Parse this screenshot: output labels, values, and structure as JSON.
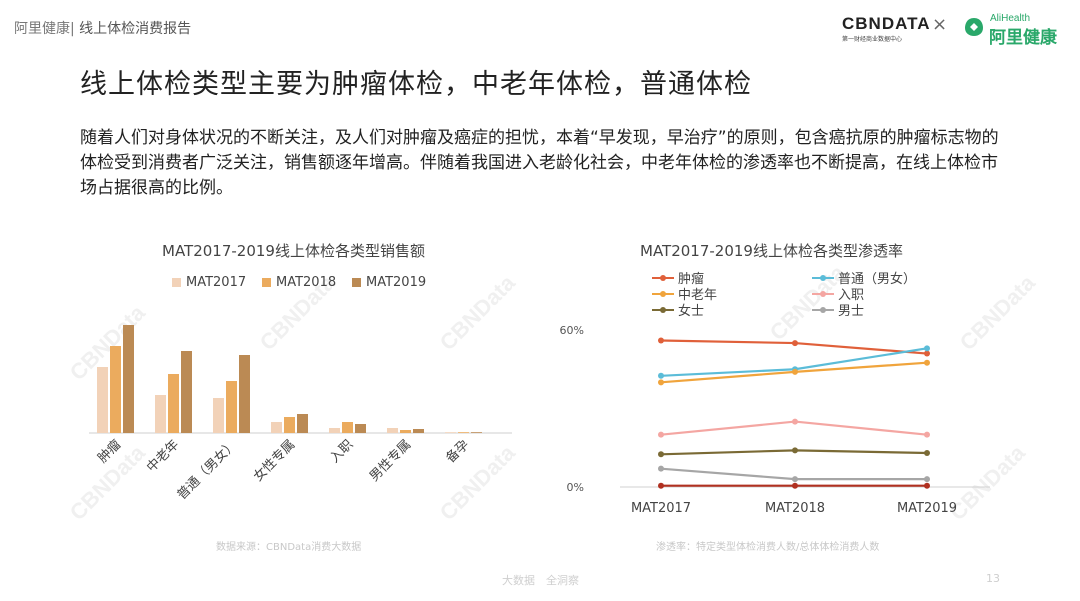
{
  "header": {
    "brand": "阿里健康|",
    "report": " 线上体检消费报告",
    "logo_cbn": "CBNDATA",
    "logo_cbn_sub": "第一财经商业数据中心",
    "logo_times": "×",
    "logo_ali_en": "AliHealth",
    "logo_ali_cn": "阿里健康"
  },
  "title": "线上体检类型主要为肿瘤体检，中老年体检，普通体检",
  "paragraph": "随着人们对身体状况的不断关注，及人们对肿瘤及癌症的担忧，本着“早发现，早治疗”的原则，包含癌抗原的肿瘤标志物的体检受到消费者广泛关注，销售额逐年增高。伴随着我国进入老龄化社会，中老年体检的渗透率也不断提高，在线上体检市场占据很高的比例。",
  "chart_data": [
    {
      "type": "bar",
      "title": "MAT2017-2019线上体检各类型销售额",
      "categories": [
        "肿瘤",
        "中老年",
        "普通（男女）",
        "女性专属",
        "入职",
        "男性专属",
        "备孕"
      ],
      "series": [
        {
          "name": "MAT2017",
          "values": [
            66,
            38,
            35,
            11,
            5,
            5,
            0.5
          ]
        },
        {
          "name": "MAT2018",
          "values": [
            87,
            59,
            52,
            16,
            11,
            3,
            0.5
          ]
        },
        {
          "name": "MAT2019",
          "values": [
            108,
            82,
            78,
            19,
            9,
            4,
            0.5
          ]
        }
      ],
      "legend_position": "top",
      "y_axis_shown": false,
      "colors": [
        "#f2d2b8",
        "#ebab5e",
        "#bb8a54"
      ]
    },
    {
      "type": "line",
      "title": "MAT2017-2019线上体检各类型渗透率",
      "categories": [
        "MAT2017",
        "MAT2018",
        "MAT2019"
      ],
      "ylim": [
        0,
        60
      ],
      "yticks": [
        "0%",
        "60%"
      ],
      "series": [
        {
          "name": "肿瘤",
          "values": [
            56,
            55,
            51
          ],
          "color": "#e0603a"
        },
        {
          "name": "普通（男女）",
          "values": [
            42.5,
            45,
            53
          ],
          "color": "#5bbcd8"
        },
        {
          "name": "中老年",
          "values": [
            40,
            44,
            47.5
          ],
          "color": "#f0a43c"
        },
        {
          "name": "入职",
          "values": [
            20,
            25,
            20
          ],
          "color": "#f4a6a2"
        },
        {
          "name": "女士",
          "values": [
            12.5,
            14,
            13
          ],
          "color": "#7a6a35"
        },
        {
          "name": "男士",
          "values": [
            7,
            3,
            3
          ],
          "color": "#a6a6a6"
        },
        {
          "name": "",
          "values": [
            0.5,
            0.5,
            0.5
          ],
          "color": "#b03020"
        }
      ],
      "legend_position": "top"
    }
  ],
  "sources": {
    "left": "数据来源：CBNData消费大数据",
    "right": "渗透率：特定类型体检消费人数/总体体检消费人数"
  },
  "footer": {
    "left": "大数据",
    "mid": "全洞察",
    "page": "13"
  },
  "watermark": "CBNData"
}
